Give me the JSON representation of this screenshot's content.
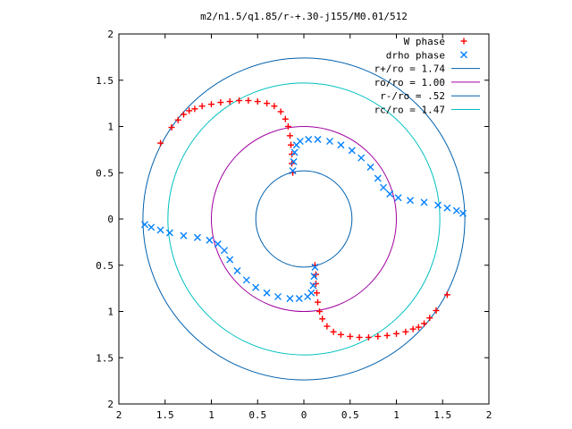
{
  "chart_data": {
    "type": "scatter",
    "title": "m2/n1.5/q1.85/r-+.30-j155/M0.01/512",
    "xlim": [
      -2,
      2
    ],
    "ylim": [
      -2,
      2
    ],
    "xticks": [
      "2",
      "1.5",
      "1",
      "0.5",
      "0",
      "0.5",
      "1",
      "1.5",
      "2"
    ],
    "yticks": [
      "2",
      "1.5",
      "1",
      "0.5",
      "0",
      "0.5",
      "1",
      "1.5",
      "2"
    ],
    "xtick_values": [
      -2,
      -1.5,
      -1,
      -0.5,
      0,
      0.5,
      1,
      1.5,
      2
    ],
    "ytick_values": [
      2,
      1.5,
      1,
      0.5,
      0,
      -0.5,
      -1,
      -1.5,
      -2
    ],
    "grid": false,
    "legend_position": "top-right",
    "circles": [
      {
        "name": "r+/ro = 1.74",
        "radius": 1.74,
        "color": "#0060ad"
      },
      {
        "name": "ro/ro = 1.00",
        "radius": 1.0,
        "color": "#a000a0"
      },
      {
        "name": "r-/ro = .52",
        "radius": 0.52,
        "color": "#0060ad"
      },
      {
        "name": "rc/ro = 1.47",
        "radius": 1.47,
        "color": "#00c0c0"
      }
    ],
    "series": [
      {
        "name": "W phase",
        "marker": "+",
        "color": "#ff0000",
        "points": [
          [
            -1.55,
            0.82
          ],
          [
            -1.43,
            0.99
          ],
          [
            -1.36,
            1.07
          ],
          [
            -1.3,
            1.13
          ],
          [
            -1.24,
            1.17
          ],
          [
            -1.18,
            1.19
          ],
          [
            -1.1,
            1.22
          ],
          [
            -1.0,
            1.24
          ],
          [
            -0.9,
            1.26
          ],
          [
            -0.8,
            1.27
          ],
          [
            -0.7,
            1.28
          ],
          [
            -0.6,
            1.28
          ],
          [
            -0.5,
            1.27
          ],
          [
            -0.4,
            1.25
          ],
          [
            -0.32,
            1.22
          ],
          [
            -0.25,
            1.16
          ],
          [
            -0.2,
            1.08
          ],
          [
            -0.17,
            1.0
          ],
          [
            -0.15,
            0.9
          ],
          [
            -0.14,
            0.8
          ],
          [
            -0.13,
            0.7
          ],
          [
            -0.13,
            0.6
          ],
          [
            -0.12,
            0.5
          ],
          [
            1.55,
            -0.82
          ],
          [
            1.43,
            -0.99
          ],
          [
            1.36,
            -1.07
          ],
          [
            1.3,
            -1.13
          ],
          [
            1.24,
            -1.17
          ],
          [
            1.18,
            -1.19
          ],
          [
            1.1,
            -1.22
          ],
          [
            1.0,
            -1.24
          ],
          [
            0.9,
            -1.26
          ],
          [
            0.8,
            -1.27
          ],
          [
            0.7,
            -1.28
          ],
          [
            0.6,
            -1.28
          ],
          [
            0.5,
            -1.27
          ],
          [
            0.4,
            -1.25
          ],
          [
            0.32,
            -1.22
          ],
          [
            0.25,
            -1.16
          ],
          [
            0.2,
            -1.08
          ],
          [
            0.17,
            -1.0
          ],
          [
            0.15,
            -0.9
          ],
          [
            0.14,
            -0.8
          ],
          [
            0.13,
            -0.7
          ],
          [
            0.13,
            -0.6
          ],
          [
            0.12,
            -0.5
          ]
        ]
      },
      {
        "name": "drho phase",
        "marker": "x",
        "color": "#0080ff",
        "points": [
          [
            -0.12,
            0.52
          ],
          [
            -0.11,
            0.62
          ],
          [
            -0.1,
            0.72
          ],
          [
            -0.08,
            0.8
          ],
          [
            -0.04,
            0.84
          ],
          [
            0.05,
            0.86
          ],
          [
            0.15,
            0.86
          ],
          [
            0.28,
            0.84
          ],
          [
            0.4,
            0.8
          ],
          [
            0.52,
            0.74
          ],
          [
            0.62,
            0.66
          ],
          [
            0.72,
            0.56
          ],
          [
            0.8,
            0.44
          ],
          [
            0.86,
            0.34
          ],
          [
            0.93,
            0.27
          ],
          [
            1.02,
            0.23
          ],
          [
            1.15,
            0.2
          ],
          [
            1.3,
            0.18
          ],
          [
            1.45,
            0.15
          ],
          [
            1.55,
            0.12
          ],
          [
            1.65,
            0.09
          ],
          [
            1.72,
            0.06
          ],
          [
            0.12,
            -0.52
          ],
          [
            0.11,
            -0.62
          ],
          [
            0.1,
            -0.72
          ],
          [
            0.08,
            -0.8
          ],
          [
            0.04,
            -0.84
          ],
          [
            -0.05,
            -0.86
          ],
          [
            -0.15,
            -0.86
          ],
          [
            -0.28,
            -0.84
          ],
          [
            -0.4,
            -0.8
          ],
          [
            -0.52,
            -0.74
          ],
          [
            -0.62,
            -0.66
          ],
          [
            -0.72,
            -0.56
          ],
          [
            -0.8,
            -0.44
          ],
          [
            -0.86,
            -0.34
          ],
          [
            -0.93,
            -0.27
          ],
          [
            -1.02,
            -0.23
          ],
          [
            -1.15,
            -0.2
          ],
          [
            -1.3,
            -0.18
          ],
          [
            -1.45,
            -0.15
          ],
          [
            -1.55,
            -0.12
          ],
          [
            -1.65,
            -0.09
          ],
          [
            -1.72,
            -0.06
          ]
        ]
      }
    ]
  }
}
